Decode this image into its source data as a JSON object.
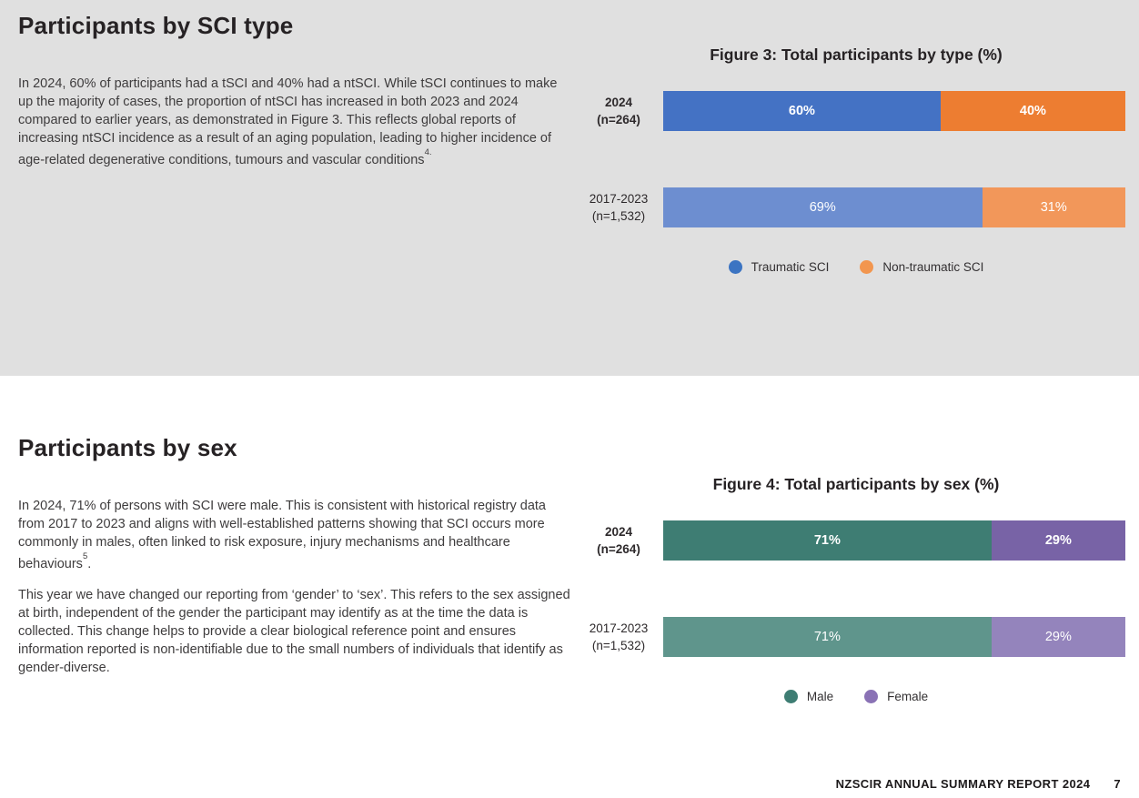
{
  "theme": {
    "band_gray": "#e0e0e0",
    "heading_color": "#262224",
    "body_color": "#3e3c3d",
    "footer_color": "#1c191a"
  },
  "sections": {
    "sci_type": {
      "heading": "Participants by SCI type",
      "paragraph": "In 2024, 60% of participants had a tSCI and 40% had a ntSCI. While tSCI continues to make up the majority of cases, the proportion of ntSCI has increased in both 2023 and 2024 compared to earlier years, as demonstrated in Figure 3. This reflects global reports of increasing ntSCI incidence as a result of an aging population, leading to higher incidence of age-related degenerative conditions, tumours and vascular conditions",
      "footnote_ref": "4."
    },
    "sex": {
      "heading": "Participants by sex",
      "paragraph1": "In 2024, 71% of persons with SCI were male. This is consistent with historical registry data from 2017 to 2023 and aligns with well-established patterns showing that SCI occurs more commonly in males, often linked to risk exposure, injury mechanisms and healthcare behaviours",
      "footnote_ref1": "5",
      "paragraph1_end": ".",
      "paragraph2": "This year we have changed our reporting from ‘gender’ to ‘sex’. This refers to the sex assigned at birth, independent of the gender the participant may identify as at the time the data is collected. This change helps to provide a clear biological reference point and ensures information reported is non-identifiable due to the small numbers of individuals that identify as gender-diverse."
    }
  },
  "footer": {
    "text": "NZSCIR ANNUAL SUMMARY REPORT 2024",
    "page_number": "7"
  },
  "chart_data": [
    {
      "type": "bar",
      "variant": "horizontal-stacked",
      "title": "Figure 3: Total participants by type (%)",
      "xlim": [
        0,
        100
      ],
      "grid": false,
      "legend_position": "bottom-center",
      "categories": [
        {
          "line1": "2024",
          "line2": "(n=264)",
          "emphasis": true
        },
        {
          "line1": "2017-2023",
          "line2": "(n=1,532)",
          "emphasis": false
        }
      ],
      "series": [
        {
          "name": "Traumatic SCI",
          "values": [
            60,
            69
          ],
          "value_labels": [
            "60%",
            "69%"
          ],
          "segment_colors": [
            "#4472c4",
            "#6d8ed0"
          ],
          "legend_color": "#3c74c2"
        },
        {
          "name": "Non-traumatic SCI",
          "values": [
            40,
            31
          ],
          "value_labels": [
            "40%",
            "31%"
          ],
          "segment_colors": [
            "#ed7d31",
            "#f2975a"
          ],
          "legend_color": "#f2964f"
        }
      ]
    },
    {
      "type": "bar",
      "variant": "horizontal-stacked",
      "title": "Figure 4: Total participants by sex (%)",
      "xlim": [
        0,
        100
      ],
      "grid": false,
      "legend_position": "bottom-center",
      "categories": [
        {
          "line1": "2024",
          "line2": "(n=264)",
          "emphasis": true
        },
        {
          "line1": "2017-2023",
          "line2": "(n=1,532)",
          "emphasis": false
        }
      ],
      "series": [
        {
          "name": "Male",
          "values": [
            71,
            71
          ],
          "value_labels": [
            "71%",
            "71%"
          ],
          "segment_colors": [
            "#3e7d73",
            "#5f958c"
          ],
          "legend_color": "#3e7d73"
        },
        {
          "name": "Female",
          "values": [
            29,
            29
          ],
          "value_labels": [
            "29%",
            "29%"
          ],
          "segment_colors": [
            "#7863a6",
            "#9484bc"
          ],
          "legend_color": "#8a72b5"
        }
      ]
    }
  ]
}
